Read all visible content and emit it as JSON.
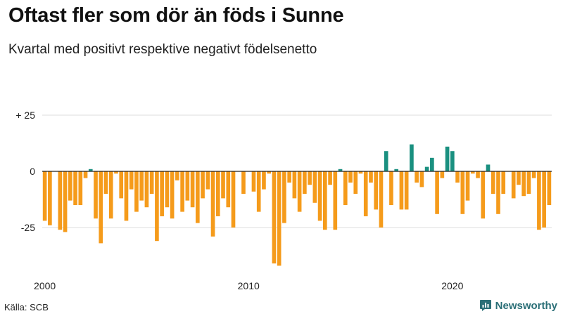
{
  "title": "Oftast fler som dör än föds i Sunne",
  "subtitle": "Kvartal med positivt respektive negativt födelsenetto",
  "source": "Källa: SCB",
  "brand": "Newsworthy",
  "colors": {
    "positive": "#1a9080",
    "negative": "#f59b1b",
    "zero_line": "#222222",
    "grid": "#dddddd",
    "brand": "#2b6f77"
  },
  "chart_data": {
    "type": "bar",
    "period": "quarterly",
    "x_start": "2000 Q1",
    "x_end": "2024 Q4",
    "ylim": [
      -46,
      28
    ],
    "yticks": [
      {
        "value": 25,
        "label": "+ 25"
      },
      {
        "value": 0,
        "label": "0"
      },
      {
        "value": -25,
        "label": "-25"
      }
    ],
    "xticks": [
      {
        "label": "2000",
        "index": 0
      },
      {
        "label": "2010",
        "index": 40
      },
      {
        "label": "2020",
        "index": 80
      }
    ],
    "grid": true,
    "legend": "none",
    "values": [
      -22,
      -24,
      0,
      -26,
      -27,
      -13,
      -15,
      -15,
      -3,
      1,
      -21,
      -32,
      -10,
      -21,
      -1,
      -12,
      -22,
      -8,
      -18,
      -13,
      -16,
      -10,
      -31,
      -20,
      -16,
      -21,
      -4,
      -18,
      -13,
      -16,
      -23,
      -12,
      -8,
      -29,
      -20,
      -12,
      -16,
      -25,
      0,
      -10,
      0,
      -9,
      -18,
      -8,
      -1,
      -41,
      -42,
      -23,
      -5,
      -12,
      -18,
      -10,
      -6,
      -14,
      -22,
      -26,
      -6,
      -26,
      1,
      -15,
      -5,
      -10,
      -1,
      -20,
      -5,
      -17,
      -25,
      9,
      -15,
      1,
      -17,
      -17,
      12,
      -5,
      -7,
      2,
      6,
      -19,
      -3,
      11,
      9,
      -5,
      -19,
      -13,
      -1,
      -3,
      -21,
      3,
      -10,
      -19,
      -10,
      0,
      -12,
      -6,
      -11,
      -10,
      -3,
      -26,
      -25,
      -15
    ]
  }
}
